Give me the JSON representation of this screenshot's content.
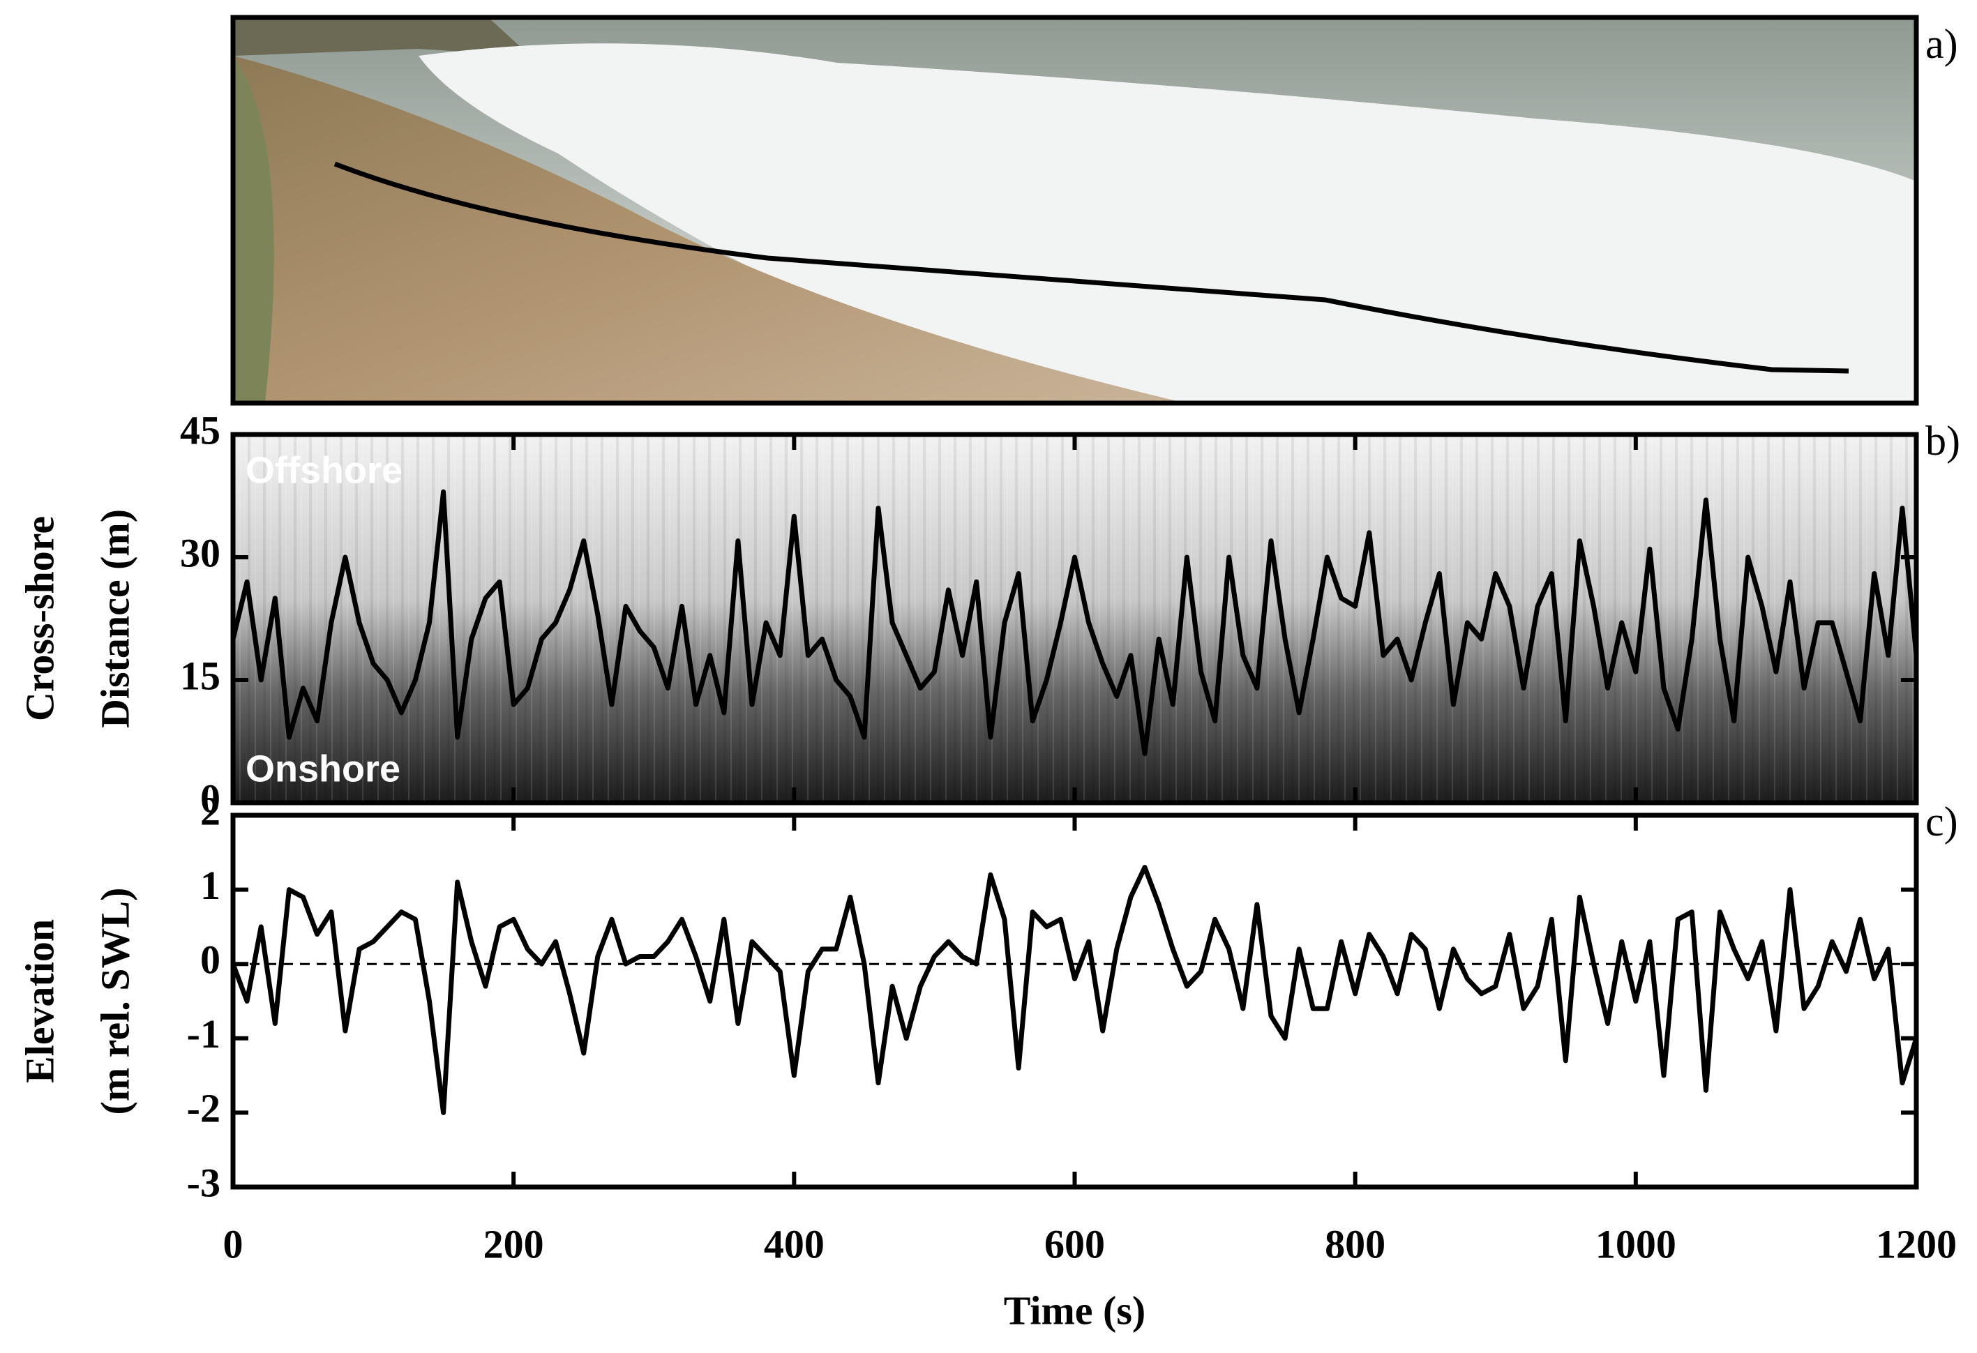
{
  "photo_panel": {
    "label": "a)"
  },
  "chart_data": [
    {
      "type": "line",
      "panel_label": "b)",
      "ylabel": [
        "Cross-shore",
        "Distance (m)"
      ],
      "annotations": [
        "Offshore",
        "Onshore"
      ],
      "xlim": [
        0,
        1200
      ],
      "xticks": [
        0,
        200,
        400,
        600,
        800,
        1000,
        1200
      ],
      "xtick_labels": false,
      "ylim": [
        0,
        45
      ],
      "yticks": [
        0,
        15,
        30,
        45
      ],
      "color": "#000000",
      "x": [
        0,
        10,
        20,
        30,
        40,
        50,
        60,
        70,
        80,
        90,
        100,
        110,
        120,
        130,
        140,
        150,
        160,
        170,
        180,
        190,
        200,
        210,
        220,
        230,
        240,
        250,
        260,
        270,
        280,
        290,
        300,
        310,
        320,
        330,
        340,
        350,
        360,
        370,
        380,
        390,
        400,
        410,
        420,
        430,
        440,
        450,
        460,
        470,
        480,
        490,
        500,
        510,
        520,
        530,
        540,
        550,
        560,
        570,
        580,
        590,
        600,
        610,
        620,
        630,
        640,
        650,
        660,
        670,
        680,
        690,
        700,
        710,
        720,
        730,
        740,
        750,
        760,
        770,
        780,
        790,
        800,
        810,
        820,
        830,
        840,
        850,
        860,
        870,
        880,
        890,
        900,
        910,
        920,
        930,
        940,
        950,
        960,
        970,
        980,
        990,
        1000,
        1010,
        1020,
        1030,
        1040,
        1050,
        1060,
        1070,
        1080,
        1090,
        1100,
        1110,
        1120,
        1130,
        1140,
        1150,
        1160,
        1170,
        1180,
        1190,
        1200
      ],
      "values": [
        20,
        27,
        15,
        25,
        8,
        14,
        10,
        22,
        30,
        22,
        17,
        15,
        11,
        15,
        22,
        38,
        8,
        20,
        25,
        27,
        12,
        14,
        20,
        22,
        26,
        32,
        23,
        12,
        24,
        21,
        19,
        14,
        24,
        12,
        18,
        11,
        32,
        12,
        22,
        18,
        35,
        18,
        20,
        15,
        13,
        8,
        36,
        22,
        18,
        14,
        16,
        26,
        18,
        27,
        8,
        22,
        28,
        10,
        15,
        22,
        30,
        22,
        17,
        13,
        18,
        6,
        20,
        12,
        30,
        16,
        10,
        30,
        18,
        14,
        32,
        20,
        11,
        20,
        30,
        25,
        24,
        33,
        18,
        20,
        15,
        22,
        28,
        12,
        22,
        20,
        28,
        24,
        14,
        24,
        28,
        10,
        32,
        24,
        14,
        22,
        16,
        31,
        14,
        9,
        20,
        37,
        20,
        10,
        30,
        24,
        16,
        27,
        14,
        22,
        22,
        16,
        10,
        28,
        18,
        36,
        18
      ]
    },
    {
      "type": "line",
      "panel_label": "c)",
      "ylabel": [
        "Elevation",
        "(m rel. SWL)"
      ],
      "xlabel": "Time (s)",
      "xlim": [
        0,
        1200
      ],
      "xticks": [
        0,
        200,
        400,
        600,
        800,
        1000,
        1200
      ],
      "xtick_labels": true,
      "ylim": [
        -3,
        2
      ],
      "yticks": [
        -3,
        -2,
        -1,
        0,
        1,
        2
      ],
      "hline": 0,
      "color": "#000000",
      "x": [
        0,
        10,
        20,
        30,
        40,
        50,
        60,
        70,
        80,
        90,
        100,
        110,
        120,
        130,
        140,
        150,
        160,
        170,
        180,
        190,
        200,
        210,
        220,
        230,
        240,
        250,
        260,
        270,
        280,
        290,
        300,
        310,
        320,
        330,
        340,
        350,
        360,
        370,
        380,
        390,
        400,
        410,
        420,
        430,
        440,
        450,
        460,
        470,
        480,
        490,
        500,
        510,
        520,
        530,
        540,
        550,
        560,
        570,
        580,
        590,
        600,
        610,
        620,
        630,
        640,
        650,
        660,
        670,
        680,
        690,
        700,
        710,
        720,
        730,
        740,
        750,
        760,
        770,
        780,
        790,
        800,
        810,
        820,
        830,
        840,
        850,
        860,
        870,
        880,
        890,
        900,
        910,
        920,
        930,
        940,
        950,
        960,
        970,
        980,
        990,
        1000,
        1010,
        1020,
        1030,
        1040,
        1050,
        1060,
        1070,
        1080,
        1090,
        1100,
        1110,
        1120,
        1130,
        1140,
        1150,
        1160,
        1170,
        1180,
        1190,
        1200
      ],
      "values": [
        0,
        -0.5,
        0.5,
        -0.8,
        1.0,
        0.9,
        0.4,
        0.7,
        -0.9,
        0.2,
        0.3,
        0.5,
        0.7,
        0.6,
        -0.5,
        -2.0,
        1.1,
        0.3,
        -0.3,
        0.5,
        0.6,
        0.2,
        0.0,
        0.3,
        -0.4,
        -1.2,
        0.1,
        0.6,
        0.0,
        0.1,
        0.1,
        0.3,
        0.6,
        0.1,
        -0.5,
        0.6,
        -0.8,
        0.3,
        0.1,
        -0.1,
        -1.5,
        -0.1,
        0.2,
        0.2,
        0.9,
        0.0,
        -1.6,
        -0.3,
        -1.0,
        -0.3,
        0.1,
        0.3,
        0.1,
        0.0,
        1.2,
        0.6,
        -1.4,
        0.7,
        0.5,
        0.6,
        -0.2,
        0.3,
        -0.9,
        0.2,
        0.9,
        1.3,
        0.8,
        0.2,
        -0.3,
        -0.1,
        0.6,
        0.2,
        -0.6,
        0.8,
        -0.7,
        -1.0,
        0.2,
        -0.6,
        -0.6,
        0.3,
        -0.4,
        0.4,
        0.1,
        -0.4,
        0.4,
        0.2,
        -0.6,
        0.2,
        -0.2,
        -0.4,
        -0.3,
        0.4,
        -0.6,
        -0.3,
        0.6,
        -1.3,
        0.9,
        0.0,
        -0.8,
        0.3,
        -0.5,
        0.3,
        -1.5,
        0.6,
        0.7,
        -1.7,
        0.7,
        0.2,
        -0.2,
        0.3,
        -0.9,
        1.0,
        -0.6,
        -0.3,
        0.3,
        -0.1,
        0.6,
        -0.2,
        0.2,
        -1.6,
        -1.0
      ]
    }
  ]
}
